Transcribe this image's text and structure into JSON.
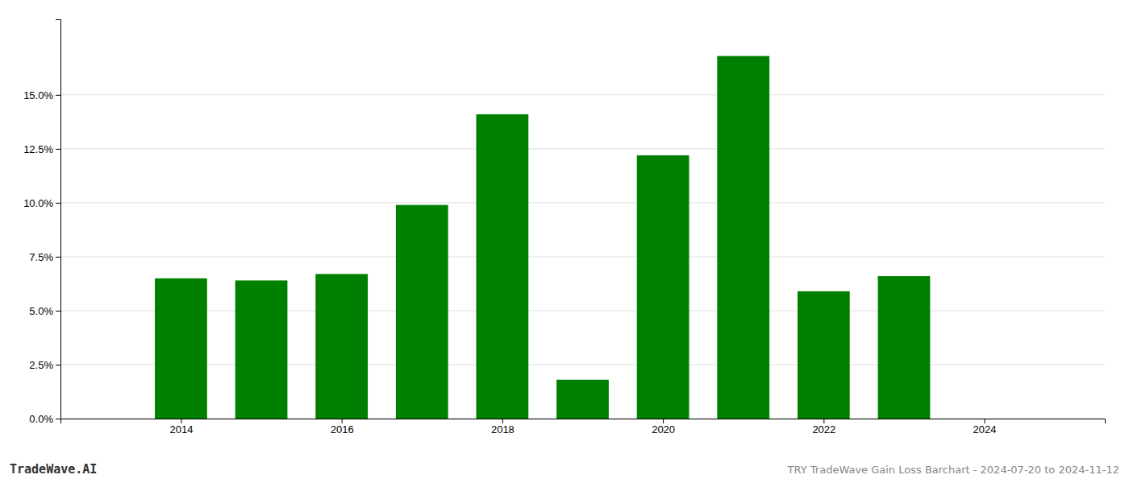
{
  "chart_data": {
    "type": "bar",
    "title": "TRY TradeWave Gain Loss Barchart - 2024-07-20 to 2024-11-12",
    "annotations": [
      "TradeWave.AI"
    ],
    "x": [
      2014,
      2015,
      2016,
      2017,
      2018,
      2019,
      2020,
      2021,
      2022,
      2023
    ],
    "values": [
      0.065,
      0.064,
      0.067,
      0.099,
      0.141,
      0.018,
      0.122,
      0.168,
      0.059,
      0.066
    ],
    "color": "#008000",
    "xlim": [
      2012.5,
      2025.5
    ],
    "xticks": [
      2014,
      2016,
      2018,
      2020,
      2022,
      2024
    ],
    "ylim": [
      0,
      0.185
    ],
    "yticks": [
      {
        "value": 0.0,
        "label": "0.0%"
      },
      {
        "value": 0.025,
        "label": "2.5%"
      },
      {
        "value": 0.05,
        "label": "5.0%"
      },
      {
        "value": 0.075,
        "label": "7.5%"
      },
      {
        "value": 0.1,
        "label": "10.0%"
      },
      {
        "value": 0.125,
        "label": "12.5%"
      },
      {
        "value": 0.15,
        "label": "15.0%"
      }
    ],
    "grid": true
  }
}
